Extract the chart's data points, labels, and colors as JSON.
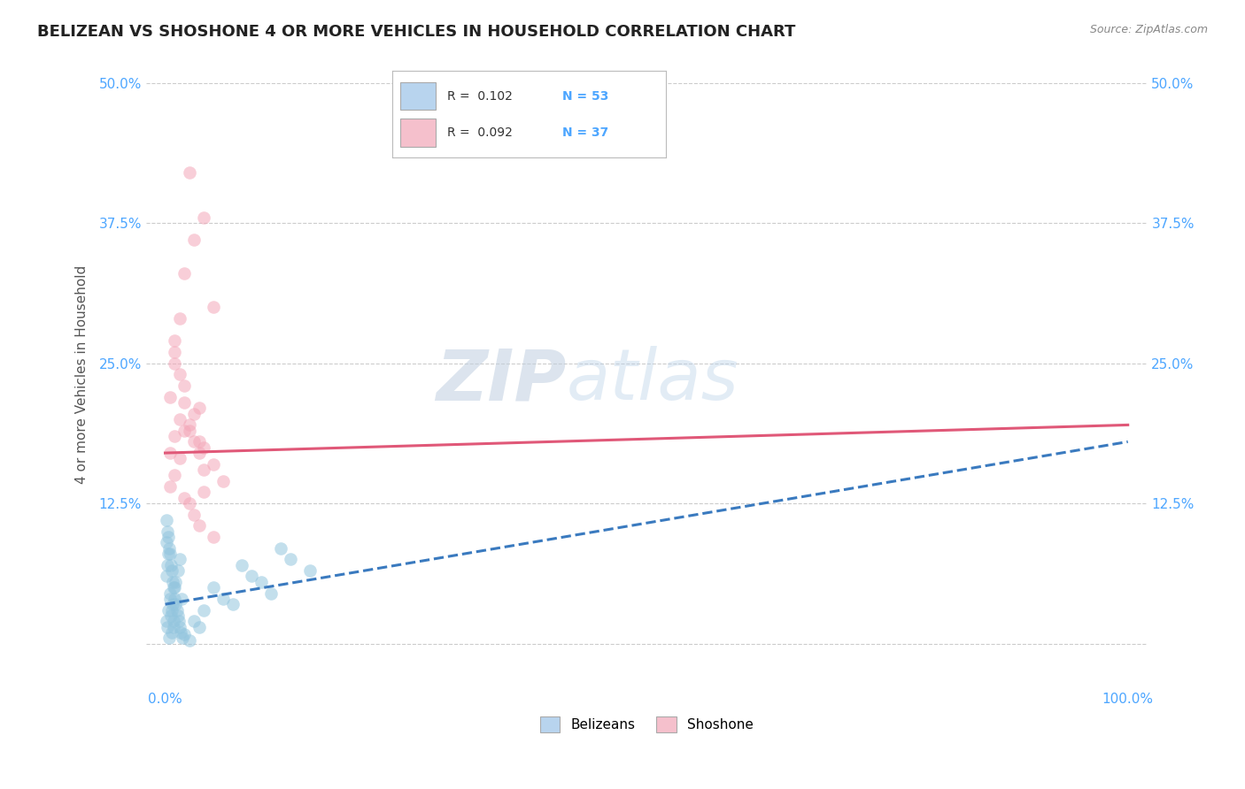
{
  "title": "BELIZEAN VS SHOSHONE 4 OR MORE VEHICLES IN HOUSEHOLD CORRELATION CHART",
  "source": "Source: ZipAtlas.com",
  "ylabel_label": "4 or more Vehicles in Household",
  "legend_labels": [
    "Belizeans",
    "Shoshone"
  ],
  "watermark_zip": "ZIP",
  "watermark_atlas": "atlas",
  "blue_color": "#92c5de",
  "pink_color": "#f4a6b8",
  "blue_line_color": "#3a7abf",
  "pink_line_color": "#e05878",
  "blue_scatter_x": [
    0.1,
    0.2,
    0.3,
    0.4,
    0.5,
    0.6,
    0.7,
    0.8,
    0.9,
    1.0,
    0.1,
    0.2,
    0.3,
    0.5,
    0.7,
    0.9,
    1.1,
    1.3,
    1.5,
    1.7,
    0.1,
    0.2,
    0.4,
    0.6,
    0.8,
    1.0,
    1.2,
    1.4,
    1.6,
    1.8,
    0.1,
    0.3,
    0.5,
    0.7,
    0.9,
    1.1,
    1.3,
    1.5,
    2.0,
    2.5,
    3.0,
    3.5,
    4.0,
    5.0,
    6.0,
    7.0,
    8.0,
    9.0,
    10.0,
    11.0,
    12.0,
    13.0,
    15.0
  ],
  "blue_scatter_y": [
    2.0,
    1.5,
    3.0,
    0.5,
    4.0,
    2.5,
    1.0,
    3.5,
    2.0,
    5.0,
    6.0,
    7.0,
    8.0,
    4.5,
    3.0,
    1.5,
    5.5,
    6.5,
    7.5,
    4.0,
    9.0,
    10.0,
    8.5,
    7.0,
    5.5,
    4.0,
    3.0,
    2.0,
    1.0,
    0.5,
    11.0,
    9.5,
    8.0,
    6.5,
    5.0,
    3.5,
    2.5,
    1.5,
    0.8,
    0.3,
    2.0,
    1.5,
    3.0,
    5.0,
    4.0,
    3.5,
    7.0,
    6.0,
    5.5,
    4.5,
    8.5,
    7.5,
    6.5
  ],
  "pink_scatter_x": [
    0.5,
    1.0,
    1.5,
    2.0,
    2.5,
    3.0,
    3.5,
    4.0,
    5.0,
    6.0,
    0.5,
    1.0,
    1.5,
    2.0,
    2.5,
    3.0,
    3.5,
    4.0,
    5.0,
    0.5,
    1.0,
    1.5,
    2.0,
    2.5,
    3.0,
    3.5,
    4.0,
    1.0,
    1.5,
    2.0,
    3.0,
    4.0,
    5.0,
    2.5,
    1.0,
    3.5,
    2.0
  ],
  "pink_scatter_y": [
    17.0,
    18.5,
    20.0,
    21.5,
    19.0,
    20.5,
    18.0,
    17.5,
    16.0,
    14.5,
    14.0,
    15.0,
    16.5,
    13.0,
    12.5,
    11.5,
    10.5,
    13.5,
    9.5,
    22.0,
    25.0,
    24.0,
    23.0,
    19.5,
    18.0,
    17.0,
    15.5,
    27.0,
    29.0,
    33.0,
    36.0,
    38.0,
    30.0,
    42.0,
    26.0,
    21.0,
    19.0
  ],
  "blue_line_x0": 0.0,
  "blue_line_y0": 3.5,
  "blue_line_x1": 100.0,
  "blue_line_y1": 18.0,
  "pink_line_x0": 0.0,
  "pink_line_y0": 17.0,
  "pink_line_x1": 100.0,
  "pink_line_y1": 19.5,
  "xmin": 0,
  "xmax": 100,
  "ymin": -4,
  "ymax": 52,
  "yticks": [
    0,
    12.5,
    25.0,
    37.5,
    50.0
  ],
  "xticks": [
    0,
    100
  ],
  "grid_color": "#cccccc",
  "background_color": "#ffffff",
  "title_fontsize": 13,
  "axis_label_fontsize": 11,
  "tick_fontsize": 11,
  "tick_color": "#4da6ff"
}
